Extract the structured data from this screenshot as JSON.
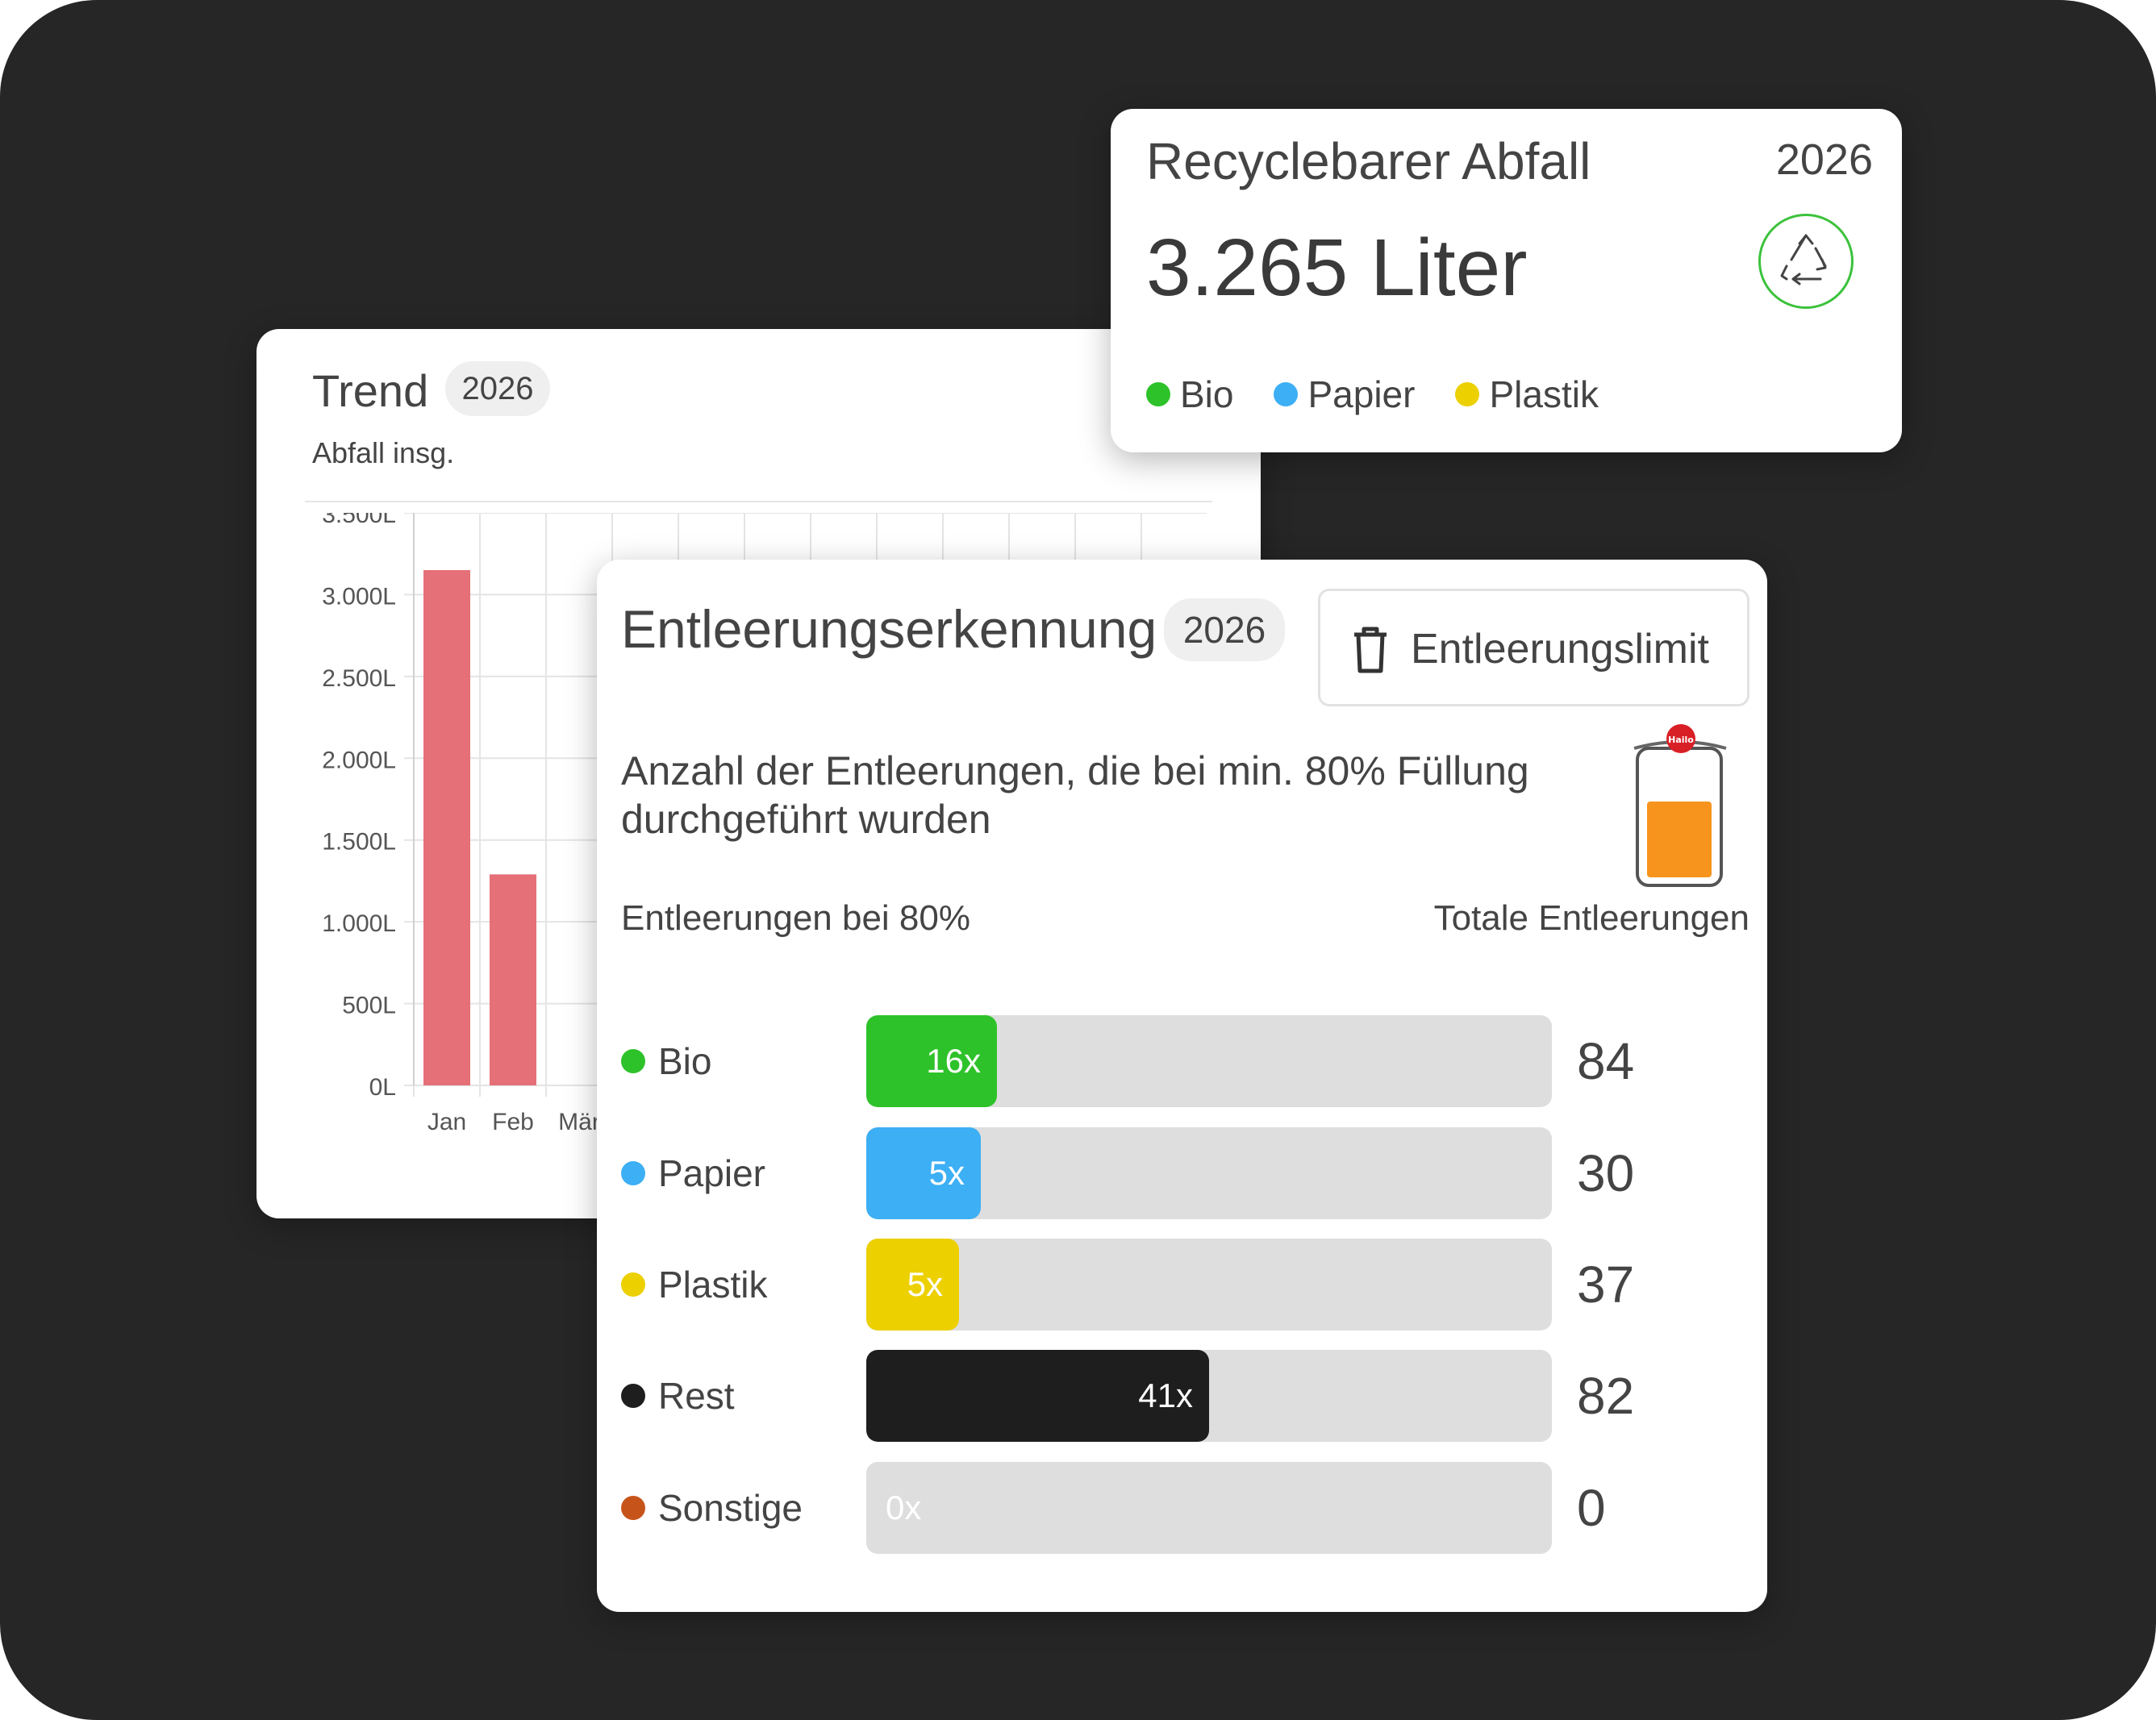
{
  "trend": {
    "title": "Trend",
    "year": "2026",
    "subtitle": "Abfall insg."
  },
  "chart_data": {
    "type": "bar",
    "categories": [
      "Jan",
      "Feb",
      "Mär"
    ],
    "values": [
      3150,
      1290,
      null
    ],
    "ylim": [
      0,
      3500
    ],
    "yticks": [
      "3.500L",
      "3.000L",
      "2.500L",
      "2.000L",
      "1.500L",
      "1.000L",
      "500L",
      "0L"
    ],
    "grid": true,
    "bar_color": "#e57078"
  },
  "recyclable": {
    "title": "Recyclebarer Abfall",
    "year": "2026",
    "value": "3.265 Liter",
    "icon": "recycle-icon",
    "legend": [
      {
        "label": "Bio",
        "color": "#2ec22a"
      },
      {
        "label": "Papier",
        "color": "#3daff5"
      },
      {
        "label": "Plastik",
        "color": "#ecd000"
      }
    ]
  },
  "entleerung": {
    "title": "Entleerungserkennung",
    "year": "2026",
    "limit_button": "Entleerungslimit",
    "limit_icon": "trash-icon",
    "description": "Anzahl der Entleerungen, die bei min. 80% Füllung durchgeführt wurden",
    "col_left": "Entleerungen bei 80%",
    "col_right": "Totale Entleerungen",
    "bin_icon": "waste-bin-icon",
    "rows": [
      {
        "label": "Bio",
        "color": "#2ec22a",
        "count_label": "16x",
        "count": 16,
        "total": "84",
        "total_value": 84
      },
      {
        "label": "Papier",
        "color": "#3daff5",
        "count_label": "5x",
        "count": 5,
        "total": "30",
        "total_value": 30
      },
      {
        "label": "Plastik",
        "color": "#ecd000",
        "count_label": "5x",
        "count": 5,
        "total": "37",
        "total_value": 37
      },
      {
        "label": "Rest",
        "color": "#1e1e1e",
        "count_label": "41x",
        "count": 41,
        "total": "82",
        "total_value": 82
      },
      {
        "label": "Sonstige",
        "color": "#c6541a",
        "count_label": "0x",
        "count": 0,
        "total": "0",
        "total_value": 0
      }
    ]
  }
}
